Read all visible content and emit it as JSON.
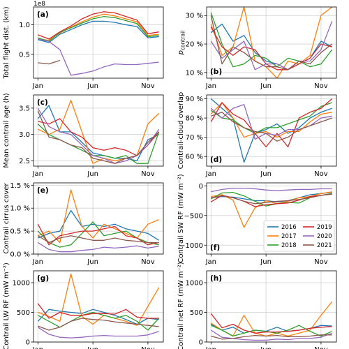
{
  "legend": {
    "entries": [
      {
        "label": "2016",
        "color": "#1f77b4"
      },
      {
        "label": "2017",
        "color": "#ff7f0e"
      },
      {
        "label": "2018",
        "color": "#2ca02c"
      },
      {
        "label": "2019",
        "color": "#d62728"
      },
      {
        "label": "2020",
        "color": "#9467bd"
      },
      {
        "label": "2021",
        "color": "#8c564b"
      }
    ],
    "location": "inside panel (f), lower-right"
  },
  "chart_data": [
    {
      "type": "line",
      "panel_label": "(a)",
      "ylabel": "Total flight dist. (km)",
      "offset_text": "1e8",
      "xticks": [
        "Jan",
        "Jun",
        "Nov"
      ],
      "ylim": [
        0.1,
        1.3
      ],
      "yticks": [
        {
          "v": 0.5,
          "t": "0.5"
        },
        {
          "v": 1.0,
          "t": "1.0"
        }
      ],
      "grid": true,
      "x": [
        1,
        2,
        3,
        4,
        5,
        6,
        7,
        8,
        9,
        10,
        11,
        12
      ],
      "series": [
        {
          "name": "2016",
          "values": [
            0.75,
            0.7,
            0.84,
            0.92,
            1.0,
            1.06,
            1.06,
            1.04,
            1.0,
            0.97,
            0.78,
            0.8
          ]
        },
        {
          "name": "2017",
          "values": [
            0.76,
            0.74,
            0.86,
            0.96,
            1.05,
            1.13,
            1.18,
            1.15,
            1.1,
            1.05,
            0.82,
            0.84
          ]
        },
        {
          "name": "2018",
          "values": [
            0.78,
            0.72,
            0.87,
            0.95,
            1.03,
            1.1,
            1.14,
            1.12,
            1.07,
            1.02,
            0.8,
            0.82
          ]
        },
        {
          "name": "2019",
          "values": [
            0.83,
            0.76,
            0.88,
            0.98,
            1.1,
            1.18,
            1.22,
            1.2,
            1.14,
            1.08,
            0.85,
            0.88
          ]
        },
        {
          "name": "2020",
          "values": [
            0.76,
            0.72,
            0.58,
            0.15,
            0.18,
            0.22,
            0.29,
            0.34,
            0.33,
            0.33,
            0.35,
            0.37
          ]
        },
        {
          "name": "2021",
          "values": [
            0.36,
            0.34,
            0.4,
            null,
            null,
            null,
            null,
            null,
            null,
            null,
            null,
            null
          ]
        }
      ]
    },
    {
      "type": "line",
      "panel_label": "(b)",
      "ylabel": "p_contrail",
      "xticks": [
        "Jan",
        "Jun",
        "Nov"
      ],
      "ylim": [
        8,
        33
      ],
      "yticks": [
        {
          "v": 10,
          "t": "10 %"
        },
        {
          "v": 20,
          "t": "20 %"
        },
        {
          "v": 30,
          "t": "30 %"
        }
      ],
      "grid": true,
      "x": [
        1,
        2,
        3,
        4,
        5,
        6,
        7,
        8,
        9,
        10,
        11,
        12
      ],
      "series": [
        {
          "name": "2016",
          "values": [
            24,
            27,
            21,
            23,
            17,
            14,
            13,
            11,
            13,
            15,
            21,
            19
          ]
        },
        {
          "name": "2017",
          "values": [
            27,
            16,
            19,
            33,
            14,
            12,
            8,
            14,
            13,
            16,
            30,
            33
          ]
        },
        {
          "name": "2018",
          "values": [
            31,
            20,
            12,
            13,
            16,
            15,
            12,
            15,
            14,
            12,
            13,
            18
          ]
        },
        {
          "name": "2019",
          "values": [
            26,
            19,
            16,
            19,
            18,
            13,
            11,
            11,
            13,
            15,
            20,
            19
          ]
        },
        {
          "name": "2020",
          "values": [
            21,
            15,
            18,
            21,
            11,
            13,
            13,
            11,
            14,
            14,
            18,
            28
          ]
        },
        {
          "name": "2021",
          "values": [
            30,
            13,
            19,
            17,
            14,
            12,
            12,
            11,
            14,
            13,
            17,
            20
          ]
        }
      ]
    },
    {
      "type": "line",
      "panel_label": "(c)",
      "ylabel": "Mean contrail age (h)",
      "xticks": [
        "Jan",
        "Jun",
        "Nov"
      ],
      "ylim": [
        2.4,
        3.75
      ],
      "yticks": [
        {
          "v": 2.5,
          "t": "2.5"
        },
        {
          "v": 3.0,
          "t": "3.0"
        },
        {
          "v": 3.5,
          "t": "3.5"
        }
      ],
      "grid": true,
      "x": [
        1,
        2,
        3,
        4,
        5,
        6,
        7,
        8,
        9,
        10,
        11,
        12
      ],
      "series": [
        {
          "name": "2016",
          "values": [
            3.3,
            3.55,
            3.05,
            3.05,
            2.85,
            2.65,
            2.6,
            2.55,
            2.55,
            2.5,
            2.9,
            3.0
          ]
        },
        {
          "name": "2017",
          "values": [
            3.1,
            3.0,
            3.1,
            3.65,
            3.05,
            2.45,
            2.55,
            2.5,
            2.55,
            2.6,
            3.2,
            3.4
          ]
        },
        {
          "name": "2018",
          "values": [
            3.2,
            3.0,
            2.9,
            2.8,
            2.7,
            2.6,
            2.6,
            2.55,
            2.6,
            2.45,
            2.45,
            3.05
          ]
        },
        {
          "name": "2019",
          "values": [
            3.25,
            3.2,
            3.3,
            3.05,
            2.95,
            2.75,
            2.7,
            2.75,
            2.7,
            2.6,
            2.8,
            3.05
          ]
        },
        {
          "name": "2020",
          "values": [
            3.5,
            3.15,
            3.05,
            3.0,
            2.8,
            2.6,
            2.55,
            2.45,
            2.5,
            2.6,
            2.8,
            3.1
          ]
        },
        {
          "name": "2021",
          "values": [
            3.45,
            2.95,
            2.9,
            2.8,
            2.75,
            2.55,
            2.5,
            2.45,
            2.55,
            2.6,
            2.85,
            3.05
          ]
        }
      ]
    },
    {
      "type": "line",
      "panel_label": "(d)",
      "ylabel": "Contrail-cloud overlap",
      "xticks": [
        "Jan",
        "Jun",
        "Nov"
      ],
      "ylim": [
        55,
        92
      ],
      "yticks": [
        {
          "v": 60,
          "t": "60 %"
        },
        {
          "v": 70,
          "t": "70 %"
        },
        {
          "v": 80,
          "t": "80 %"
        },
        {
          "v": 90,
          "t": "90 %"
        }
      ],
      "grid": true,
      "x": [
        1,
        2,
        3,
        4,
        5,
        6,
        7,
        8,
        9,
        10,
        11,
        12
      ],
      "series": [
        {
          "name": "2016",
          "values": [
            90,
            85,
            80,
            57,
            72,
            74,
            77,
            72,
            75,
            80,
            83,
            85
          ]
        },
        {
          "name": "2017",
          "values": [
            82,
            88,
            80,
            70,
            72,
            73,
            70,
            73,
            73,
            78,
            82,
            83
          ]
        },
        {
          "name": "2018",
          "values": [
            84,
            80,
            79,
            75,
            72,
            75,
            75,
            77,
            79,
            81,
            86,
            88
          ]
        },
        {
          "name": "2019",
          "values": [
            78,
            88,
            82,
            79,
            72,
            65,
            72,
            65,
            80,
            83,
            85,
            90
          ]
        },
        {
          "name": "2020",
          "values": [
            85,
            80,
            85,
            87,
            69,
            72,
            71,
            74,
            74,
            76,
            80,
            81
          ]
        },
        {
          "name": "2021",
          "values": [
            81,
            83,
            78,
            75,
            73,
            72,
            68,
            70,
            74,
            76,
            78,
            80
          ]
        }
      ]
    },
    {
      "type": "line",
      "panel_label": "(e)",
      "ylabel": "Contrail cirrus cover",
      "xticks": [
        "Jan",
        "Jun",
        "Nov"
      ],
      "ylim": [
        0,
        1.55
      ],
      "yticks": [
        {
          "v": 0,
          "t": "0.0 %"
        },
        {
          "v": 0.5,
          "t": "0.5 %"
        },
        {
          "v": 1.0,
          "t": "1.0 %"
        },
        {
          "v": 1.5,
          "t": "1.5 %"
        }
      ],
      "grid": true,
      "x": [
        1,
        2,
        3,
        4,
        5,
        6,
        7,
        8,
        9,
        10,
        11,
        12
      ],
      "series": [
        {
          "name": "2016",
          "values": [
            0.35,
            0.45,
            0.5,
            0.95,
            0.6,
            0.65,
            0.6,
            0.65,
            0.55,
            0.5,
            0.45,
            0.3
          ]
        },
        {
          "name": "2017",
          "values": [
            0.4,
            0.5,
            0.25,
            1.4,
            0.6,
            0.35,
            0.65,
            0.55,
            0.45,
            0.35,
            0.65,
            0.75
          ]
        },
        {
          "name": "2018",
          "values": [
            0.5,
            0.25,
            0.15,
            0.2,
            0.45,
            0.7,
            0.4,
            0.45,
            0.5,
            0.35,
            0.25,
            0.2
          ]
        },
        {
          "name": "2019",
          "values": [
            0.65,
            0.2,
            0.4,
            0.45,
            0.5,
            0.5,
            0.55,
            0.6,
            0.4,
            0.35,
            0.2,
            0.25
          ]
        },
        {
          "name": "2020",
          "values": [
            0.25,
            0.1,
            0.05,
            0.05,
            0.08,
            0.1,
            0.15,
            0.13,
            0.15,
            0.18,
            0.13,
            0.17
          ]
        },
        {
          "name": "2021",
          "values": [
            0.4,
            0.25,
            0.35,
            0.4,
            0.35,
            0.3,
            0.3,
            0.35,
            0.3,
            0.28,
            0.25,
            0.25
          ]
        }
      ]
    },
    {
      "type": "line",
      "panel_label": "(f)",
      "ylabel": "Contrail SW RF (mW m⁻²)",
      "xticks": [
        "Jan",
        "Jun",
        "Nov"
      ],
      "ylim": [
        -1150,
        50
      ],
      "yticks": [
        {
          "v": -1000,
          "t": "−1000"
        },
        {
          "v": -500,
          "t": "−500"
        },
        {
          "v": 0,
          "t": "0"
        }
      ],
      "grid": true,
      "x": [
        1,
        2,
        3,
        4,
        5,
        6,
        7,
        8,
        9,
        10,
        11,
        12
      ],
      "series": [
        {
          "name": "2016",
          "values": [
            -200,
            -180,
            -190,
            -220,
            -250,
            -250,
            -270,
            -250,
            -200,
            -150,
            -130,
            -110
          ]
        },
        {
          "name": "2017",
          "values": [
            -180,
            -150,
            -240,
            -700,
            -370,
            -250,
            -300,
            -260,
            -200,
            -180,
            -130,
            -100
          ]
        },
        {
          "name": "2018",
          "values": [
            -220,
            -120,
            -110,
            -170,
            -260,
            -340,
            -300,
            -280,
            -290,
            -200,
            -160,
            -130
          ]
        },
        {
          "name": "2019",
          "values": [
            -270,
            -160,
            -200,
            -260,
            -350,
            -320,
            -300,
            -290,
            -240,
            -180,
            -160,
            -140
          ]
        },
        {
          "name": "2020",
          "values": [
            -100,
            -60,
            -40,
            -40,
            -50,
            -70,
            -80,
            -70,
            -60,
            -60,
            -50,
            -50
          ]
        },
        {
          "name": "2021",
          "values": [
            -200,
            -170,
            -200,
            -260,
            -300,
            -280,
            -260,
            -250,
            -230,
            -200,
            -160,
            -140
          ]
        }
      ]
    },
    {
      "type": "line",
      "panel_label": "(g)",
      "ylabel": "Contrail LW RF (mW m⁻²)",
      "xticks": [
        "Jan",
        "Jun",
        "Nov"
      ],
      "ylim": [
        0,
        1200
      ],
      "yticks": [
        {
          "v": 0,
          "t": "0"
        },
        {
          "v": 500,
          "t": "500"
        },
        {
          "v": 1000,
          "t": "1000"
        }
      ],
      "grid": true,
      "x": [
        1,
        2,
        3,
        4,
        5,
        6,
        7,
        8,
        9,
        10,
        11,
        12
      ],
      "series": [
        {
          "name": "2016",
          "values": [
            350,
            550,
            520,
            500,
            480,
            550,
            500,
            450,
            380,
            300,
            400,
            380
          ]
        },
        {
          "name": "2017",
          "values": [
            500,
            430,
            350,
            1150,
            430,
            300,
            450,
            400,
            350,
            280,
            600,
            920
          ]
        },
        {
          "name": "2018",
          "values": [
            450,
            350,
            250,
            350,
            450,
            500,
            450,
            400,
            450,
            350,
            200,
            400
          ]
        },
        {
          "name": "2019",
          "values": [
            650,
            400,
            500,
            450,
            450,
            480,
            480,
            470,
            550,
            420,
            400,
            400
          ]
        },
        {
          "name": "2020",
          "values": [
            250,
            130,
            80,
            70,
            80,
            100,
            110,
            100,
            100,
            100,
            120,
            180
          ]
        },
        {
          "name": "2021",
          "values": [
            270,
            200,
            250,
            350,
            400,
            380,
            370,
            340,
            320,
            300,
            280,
            260
          ]
        }
      ]
    },
    {
      "type": "line",
      "panel_label": "(h)",
      "ylabel": "Contrail net RF (mW m⁻²)",
      "xticks": [
        "Jan",
        "Jun",
        "Nov"
      ],
      "ylim": [
        0,
        1200
      ],
      "yticks": [
        {
          "v": 0,
          "t": "0"
        },
        {
          "v": 500,
          "t": "500"
        },
        {
          "v": 1000,
          "t": "1000"
        }
      ],
      "grid": true,
      "x": [
        1,
        2,
        3,
        4,
        5,
        6,
        7,
        8,
        9,
        10,
        11,
        12
      ],
      "series": [
        {
          "name": "2016",
          "values": [
            300,
            200,
            250,
            150,
            200,
            180,
            250,
            180,
            200,
            230,
            280,
            270
          ]
        },
        {
          "name": "2017",
          "values": [
            320,
            200,
            100,
            450,
            150,
            100,
            150,
            100,
            150,
            200,
            450,
            680
          ]
        },
        {
          "name": "2018",
          "values": [
            280,
            200,
            100,
            150,
            200,
            180,
            150,
            200,
            280,
            180,
            100,
            180
          ]
        },
        {
          "name": "2019",
          "values": [
            480,
            240,
            300,
            200,
            150,
            170,
            170,
            180,
            200,
            230,
            250,
            260
          ]
        },
        {
          "name": "2020",
          "values": [
            200,
            80,
            60,
            40,
            30,
            30,
            50,
            40,
            60,
            60,
            80,
            150
          ]
        },
        {
          "name": "2021",
          "values": [
            100,
            50,
            60,
            90,
            110,
            100,
            110,
            90,
            90,
            100,
            120,
            120
          ]
        }
      ]
    }
  ]
}
